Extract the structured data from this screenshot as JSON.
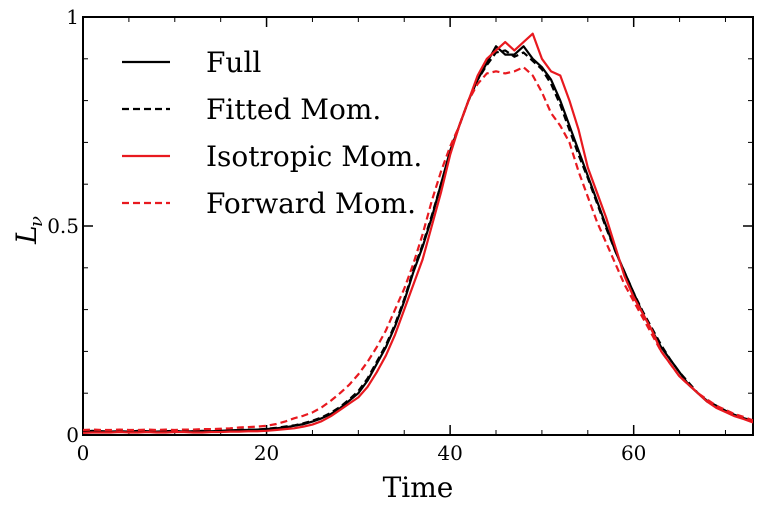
{
  "chart_data": {
    "type": "line",
    "title": "",
    "xlabel": "Time",
    "ylabel_main": "L",
    "ylabel_sub": "ν",
    "xlim": [
      0,
      73
    ],
    "ylim": [
      0,
      1
    ],
    "x_ticks": [
      0,
      20,
      40,
      60
    ],
    "x_tick_labels": [
      "0",
      "20",
      "40",
      "60"
    ],
    "y_ticks": [
      0,
      0.5,
      1
    ],
    "y_tick_labels": [
      "0",
      "0.5",
      "1"
    ],
    "grid": false,
    "legend_position": "top-left",
    "series": [
      {
        "name": "Full",
        "color": "#000000",
        "dash": "solid",
        "x": [
          0,
          1,
          2,
          3,
          4,
          5,
          6,
          7,
          8,
          9,
          10,
          11,
          12,
          13,
          14,
          15,
          16,
          17,
          18,
          19,
          20,
          21,
          22,
          23,
          24,
          25,
          26,
          27,
          28,
          29,
          30,
          31,
          32,
          33,
          34,
          35,
          36,
          37,
          38,
          39,
          40,
          41,
          42,
          43,
          44,
          45,
          46,
          47,
          48,
          49,
          50,
          51,
          52,
          53,
          54,
          55,
          56,
          57,
          58,
          59,
          60,
          61,
          62,
          63,
          64,
          65,
          66,
          67,
          68,
          69,
          70,
          71,
          72,
          73
        ],
        "y": [
          0.008,
          0.01,
          0.009,
          0.008,
          0.009,
          0.008,
          0.01,
          0.009,
          0.008,
          0.009,
          0.01,
          0.008,
          0.009,
          0.01,
          0.009,
          0.01,
          0.011,
          0.012,
          0.012,
          0.013,
          0.014,
          0.016,
          0.018,
          0.022,
          0.026,
          0.032,
          0.04,
          0.05,
          0.064,
          0.082,
          0.1,
          0.13,
          0.17,
          0.21,
          0.26,
          0.32,
          0.39,
          0.45,
          0.52,
          0.6,
          0.68,
          0.74,
          0.8,
          0.85,
          0.89,
          0.93,
          0.91,
          0.91,
          0.93,
          0.9,
          0.88,
          0.85,
          0.8,
          0.74,
          0.68,
          0.62,
          0.56,
          0.5,
          0.44,
          0.39,
          0.34,
          0.29,
          0.25,
          0.21,
          0.18,
          0.15,
          0.12,
          0.1,
          0.08,
          0.07,
          0.058,
          0.048,
          0.04,
          0.034
        ]
      },
      {
        "name": "Fitted Mom.",
        "color": "#000000",
        "dash": "dashed",
        "x": [
          0,
          1,
          2,
          3,
          4,
          5,
          6,
          7,
          8,
          9,
          10,
          11,
          12,
          13,
          14,
          15,
          16,
          17,
          18,
          19,
          20,
          21,
          22,
          23,
          24,
          25,
          26,
          27,
          28,
          29,
          30,
          31,
          32,
          33,
          34,
          35,
          36,
          37,
          38,
          39,
          40,
          41,
          42,
          43,
          44,
          45,
          46,
          47,
          48,
          49,
          50,
          51,
          52,
          53,
          54,
          55,
          56,
          57,
          58,
          59,
          60,
          61,
          62,
          63,
          64,
          65,
          66,
          67,
          68,
          69,
          70,
          71,
          72,
          73
        ],
        "y": [
          0.009,
          0.01,
          0.009,
          0.009,
          0.008,
          0.009,
          0.01,
          0.009,
          0.009,
          0.008,
          0.01,
          0.009,
          0.009,
          0.01,
          0.01,
          0.011,
          0.011,
          0.012,
          0.013,
          0.013,
          0.015,
          0.017,
          0.02,
          0.023,
          0.028,
          0.034,
          0.042,
          0.053,
          0.067,
          0.085,
          0.105,
          0.135,
          0.175,
          0.215,
          0.265,
          0.325,
          0.395,
          0.455,
          0.525,
          0.6,
          0.675,
          0.74,
          0.8,
          0.85,
          0.885,
          0.915,
          0.92,
          0.905,
          0.915,
          0.895,
          0.875,
          0.84,
          0.79,
          0.73,
          0.67,
          0.615,
          0.555,
          0.495,
          0.44,
          0.39,
          0.34,
          0.295,
          0.255,
          0.215,
          0.18,
          0.15,
          0.125,
          0.1,
          0.082,
          0.07,
          0.058,
          0.048,
          0.04,
          0.034
        ]
      },
      {
        "name": "Isotropic Mom.",
        "color": "#e8191f",
        "dash": "solid",
        "x": [
          0,
          1,
          2,
          3,
          4,
          5,
          6,
          7,
          8,
          9,
          10,
          11,
          12,
          13,
          14,
          15,
          16,
          17,
          18,
          19,
          20,
          21,
          22,
          23,
          24,
          25,
          26,
          27,
          28,
          29,
          30,
          31,
          32,
          33,
          34,
          35,
          36,
          37,
          38,
          39,
          40,
          41,
          42,
          43,
          44,
          45,
          46,
          47,
          48,
          49,
          50,
          51,
          52,
          53,
          54,
          55,
          56,
          57,
          58,
          59,
          60,
          61,
          62,
          63,
          64,
          65,
          66,
          67,
          68,
          69,
          70,
          71,
          72,
          73
        ],
        "y": [
          0.005,
          0.006,
          0.006,
          0.006,
          0.007,
          0.006,
          0.006,
          0.007,
          0.006,
          0.006,
          0.007,
          0.007,
          0.006,
          0.006,
          0.007,
          0.007,
          0.008,
          0.008,
          0.009,
          0.009,
          0.01,
          0.012,
          0.014,
          0.016,
          0.02,
          0.025,
          0.033,
          0.045,
          0.06,
          0.075,
          0.09,
          0.115,
          0.15,
          0.19,
          0.24,
          0.3,
          0.36,
          0.42,
          0.5,
          0.58,
          0.67,
          0.74,
          0.8,
          0.86,
          0.9,
          0.92,
          0.94,
          0.92,
          0.94,
          0.96,
          0.9,
          0.87,
          0.86,
          0.8,
          0.73,
          0.64,
          0.58,
          0.52,
          0.45,
          0.38,
          0.33,
          0.29,
          0.25,
          0.2,
          0.17,
          0.14,
          0.12,
          0.1,
          0.08,
          0.065,
          0.055,
          0.045,
          0.038,
          0.03
        ]
      },
      {
        "name": "Forward Mom.",
        "color": "#e8191f",
        "dash": "dashed",
        "x": [
          0,
          1,
          2,
          3,
          4,
          5,
          6,
          7,
          8,
          9,
          10,
          11,
          12,
          13,
          14,
          15,
          16,
          17,
          18,
          19,
          20,
          21,
          22,
          23,
          24,
          25,
          26,
          27,
          28,
          29,
          30,
          31,
          32,
          33,
          34,
          35,
          36,
          37,
          38,
          39,
          40,
          41,
          42,
          43,
          44,
          45,
          46,
          47,
          48,
          49,
          50,
          51,
          52,
          53,
          54,
          55,
          56,
          57,
          58,
          59,
          60,
          61,
          62,
          63,
          64,
          65,
          66,
          67,
          68,
          69,
          70,
          71,
          72,
          73
        ],
        "y": [
          0.012,
          0.013,
          0.012,
          0.012,
          0.013,
          0.012,
          0.012,
          0.013,
          0.012,
          0.013,
          0.012,
          0.013,
          0.013,
          0.014,
          0.014,
          0.015,
          0.016,
          0.018,
          0.019,
          0.02,
          0.022,
          0.026,
          0.032,
          0.04,
          0.046,
          0.054,
          0.066,
          0.082,
          0.1,
          0.12,
          0.145,
          0.175,
          0.21,
          0.25,
          0.3,
          0.35,
          0.41,
          0.48,
          0.56,
          0.63,
          0.69,
          0.74,
          0.8,
          0.84,
          0.865,
          0.87,
          0.865,
          0.87,
          0.88,
          0.86,
          0.82,
          0.77,
          0.74,
          0.7,
          0.63,
          0.57,
          0.51,
          0.46,
          0.41,
          0.36,
          0.32,
          0.28,
          0.24,
          0.2,
          0.17,
          0.14,
          0.12,
          0.1,
          0.085,
          0.07,
          0.06,
          0.05,
          0.043,
          0.035
        ]
      }
    ]
  }
}
